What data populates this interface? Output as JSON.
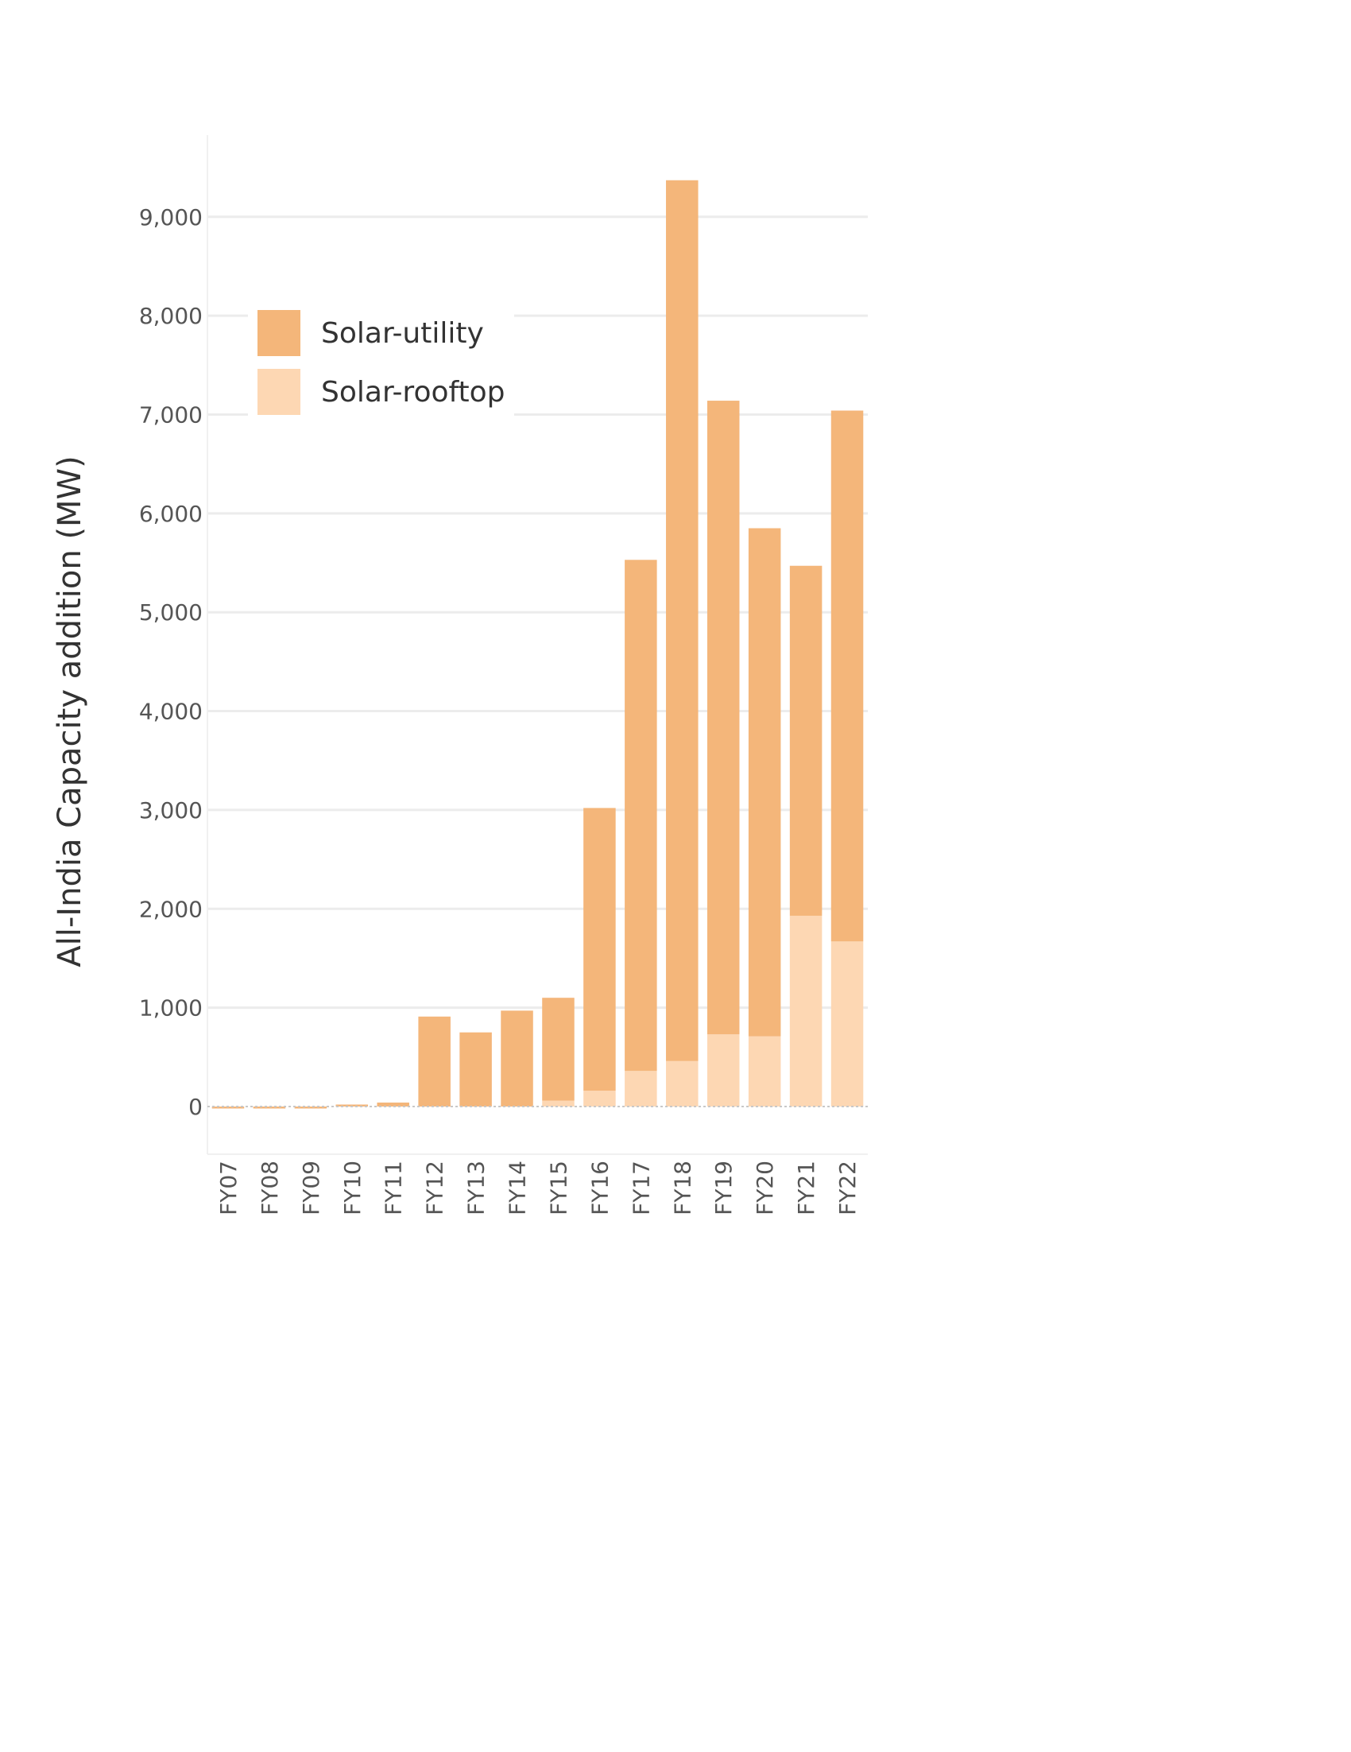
{
  "chart_data": {
    "type": "bar",
    "stacked": true,
    "ylabel": "All-India Capacity addition (MW)",
    "xlabel": "",
    "categories": [
      "FY07",
      "FY08",
      "FY09",
      "FY10",
      "FY11",
      "FY12",
      "FY13",
      "FY14",
      "FY15",
      "FY16",
      "FY17",
      "FY18",
      "FY19",
      "FY20",
      "FY21",
      "FY22"
    ],
    "series": [
      {
        "name": "Solar-rooftop",
        "color": "#fdd7b3",
        "values": [
          0,
          0,
          0,
          0,
          0,
          0,
          0,
          0,
          60,
          160,
          360,
          460,
          730,
          710,
          1930,
          1670
        ]
      },
      {
        "name": "Solar-utility",
        "color": "#f4b67a",
        "values": [
          -20,
          -20,
          -20,
          20,
          40,
          910,
          750,
          970,
          1040,
          2860,
          5170,
          8910,
          6410,
          5140,
          3540,
          5370
        ]
      }
    ],
    "yticks": [
      0,
      1000,
      2000,
      3000,
      4000,
      5000,
      6000,
      7000,
      8000,
      9000
    ],
    "ytick_labels": [
      "0",
      "1,000",
      "2,000",
      "3,000",
      "4,000",
      "5,000",
      "6,000",
      "7,000",
      "8,000",
      "9,000"
    ],
    "ylim": [
      -480,
      9750
    ],
    "grid": true,
    "legend_position": "top-left",
    "legend_order": [
      "Solar-utility",
      "Solar-rooftop"
    ],
    "grid_color": "#ececec",
    "zero_line_color": "#c8c8c8"
  }
}
